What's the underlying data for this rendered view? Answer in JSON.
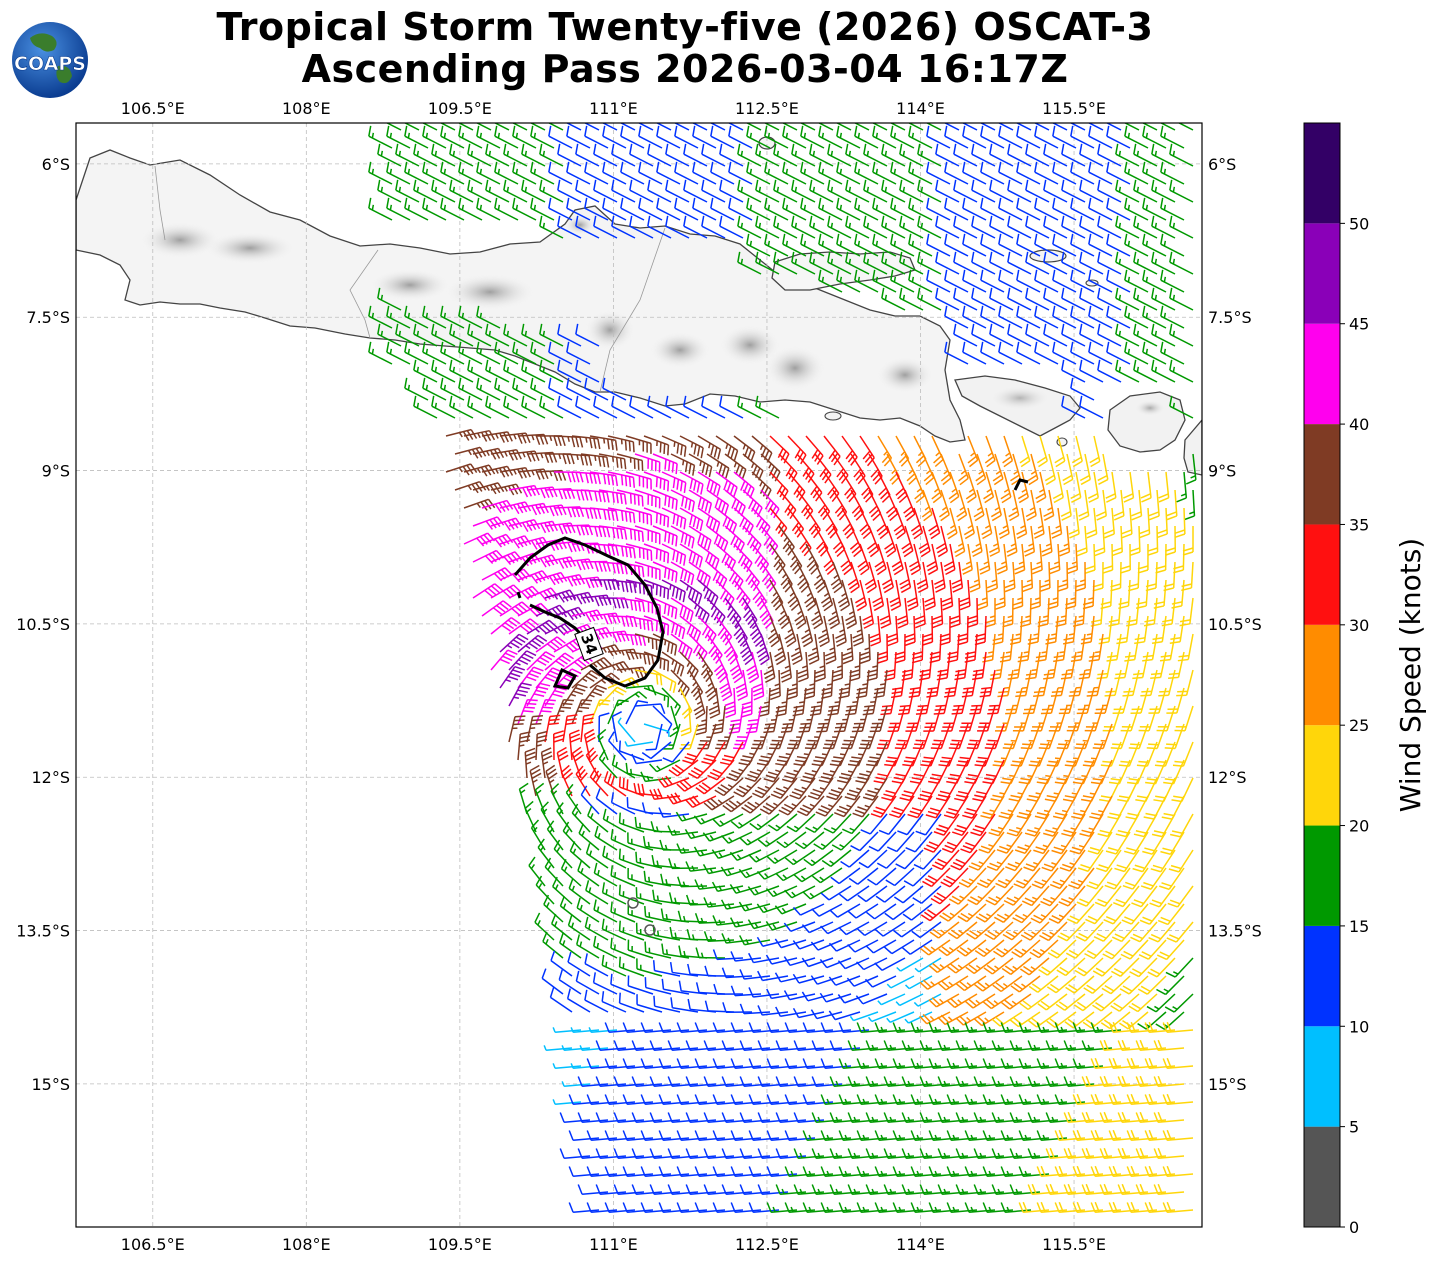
{
  "title": {
    "line1": "Tropical Storm Twenty-five (2026) OSCAT-3",
    "line2": "Ascending Pass 2026-03-04 16:17Z"
  },
  "logo": {
    "text": "COAPS",
    "icon": "globe-icon"
  },
  "map": {
    "lon_range": [
      105.75,
      116.75
    ],
    "lat_range": [
      -5.6,
      -16.4
    ],
    "lon_ticks": [
      {
        "value": 106.5,
        "label": "106.5°E"
      },
      {
        "value": 108.0,
        "label": "108°E"
      },
      {
        "value": 109.5,
        "label": "109.5°E"
      },
      {
        "value": 111.0,
        "label": "111°E"
      },
      {
        "value": 112.5,
        "label": "112.5°E"
      },
      {
        "value": 114.0,
        "label": "114°E"
      },
      {
        "value": 115.5,
        "label": "115.5°E"
      }
    ],
    "lat_ticks": [
      {
        "value": -6.0,
        "label": "6°S"
      },
      {
        "value": -7.5,
        "label": "7.5°S"
      },
      {
        "value": -9.0,
        "label": "9°S"
      },
      {
        "value": -10.5,
        "label": "10.5°S"
      },
      {
        "value": -12.0,
        "label": "12°S"
      },
      {
        "value": -13.5,
        "label": "13.5°S"
      },
      {
        "value": -15.0,
        "label": "15°S"
      }
    ],
    "storm_center": {
      "lon": 111.3,
      "lat": -11.5
    },
    "wind_radius_label": "34"
  },
  "colorbar": {
    "label": "Wind Speed (knots)",
    "ticks": [
      "0",
      "5",
      "10",
      "15",
      "20",
      "25",
      "30",
      "35",
      "40",
      "45",
      "50"
    ],
    "bins": [
      {
        "min": 0,
        "max": 5,
        "color": "#555555"
      },
      {
        "min": 5,
        "max": 10,
        "color": "#00bfff"
      },
      {
        "min": 10,
        "max": 15,
        "color": "#0033ff"
      },
      {
        "min": 15,
        "max": 20,
        "color": "#009900"
      },
      {
        "min": 20,
        "max": 25,
        "color": "#ffd60a"
      },
      {
        "min": 25,
        "max": 30,
        "color": "#ff8c00"
      },
      {
        "min": 30,
        "max": 35,
        "color": "#ff1010"
      },
      {
        "min": 35,
        "max": 40,
        "color": "#7f3b24"
      },
      {
        "min": 40,
        "max": 45,
        "color": "#ff00ee"
      },
      {
        "min": 45,
        "max": 50,
        "color": "#8a00b8"
      },
      {
        "min": 50,
        "max": 55,
        "color": "#330066"
      }
    ]
  }
}
